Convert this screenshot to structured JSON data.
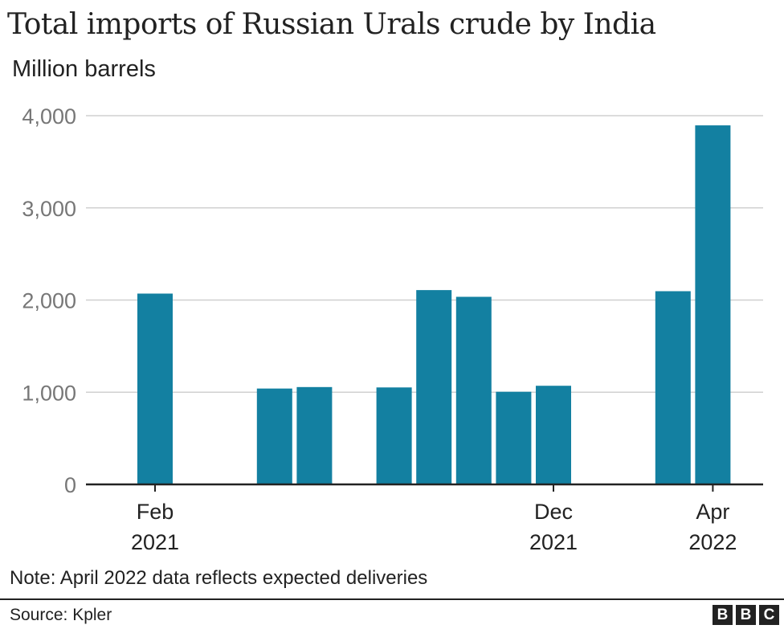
{
  "chart_data": {
    "type": "bar",
    "title": "Total imports of Russian Urals crude by India",
    "ylabel": "Million barrels",
    "xlabel": "",
    "ylim": [
      0,
      4000
    ],
    "yticks": [
      0,
      1000,
      2000,
      3000,
      4000
    ],
    "ytick_labels": [
      "0",
      "1,000",
      "2,000",
      "3,000",
      "4,000"
    ],
    "categories": [
      "Feb 2021",
      "Mar 2021",
      "Apr 2021",
      "May 2021",
      "Jun 2021",
      "Jul 2021",
      "Aug 2021",
      "Sep 2021",
      "Oct 2021",
      "Nov 2021",
      "Dec 2021",
      "Jan 2022",
      "Feb 2022",
      "Mar 2022",
      "Apr 2022"
    ],
    "values": [
      2070,
      0,
      0,
      1040,
      1056,
      0,
      1052,
      2108,
      2035,
      1005,
      1070,
      0,
      0,
      2096,
      3895
    ],
    "xtick_labels": [
      {
        "index": 0,
        "month": "Feb",
        "year": "2021"
      },
      {
        "index": 10,
        "month": "Dec",
        "year": "2021"
      },
      {
        "index": 14,
        "month": "Apr",
        "year": "2022"
      }
    ],
    "grid": true,
    "bar_color": "#1380a1"
  },
  "note": "Note: April 2022 data reflects expected deliveries",
  "source": "Source: Kpler",
  "logo": [
    "B",
    "B",
    "C"
  ]
}
